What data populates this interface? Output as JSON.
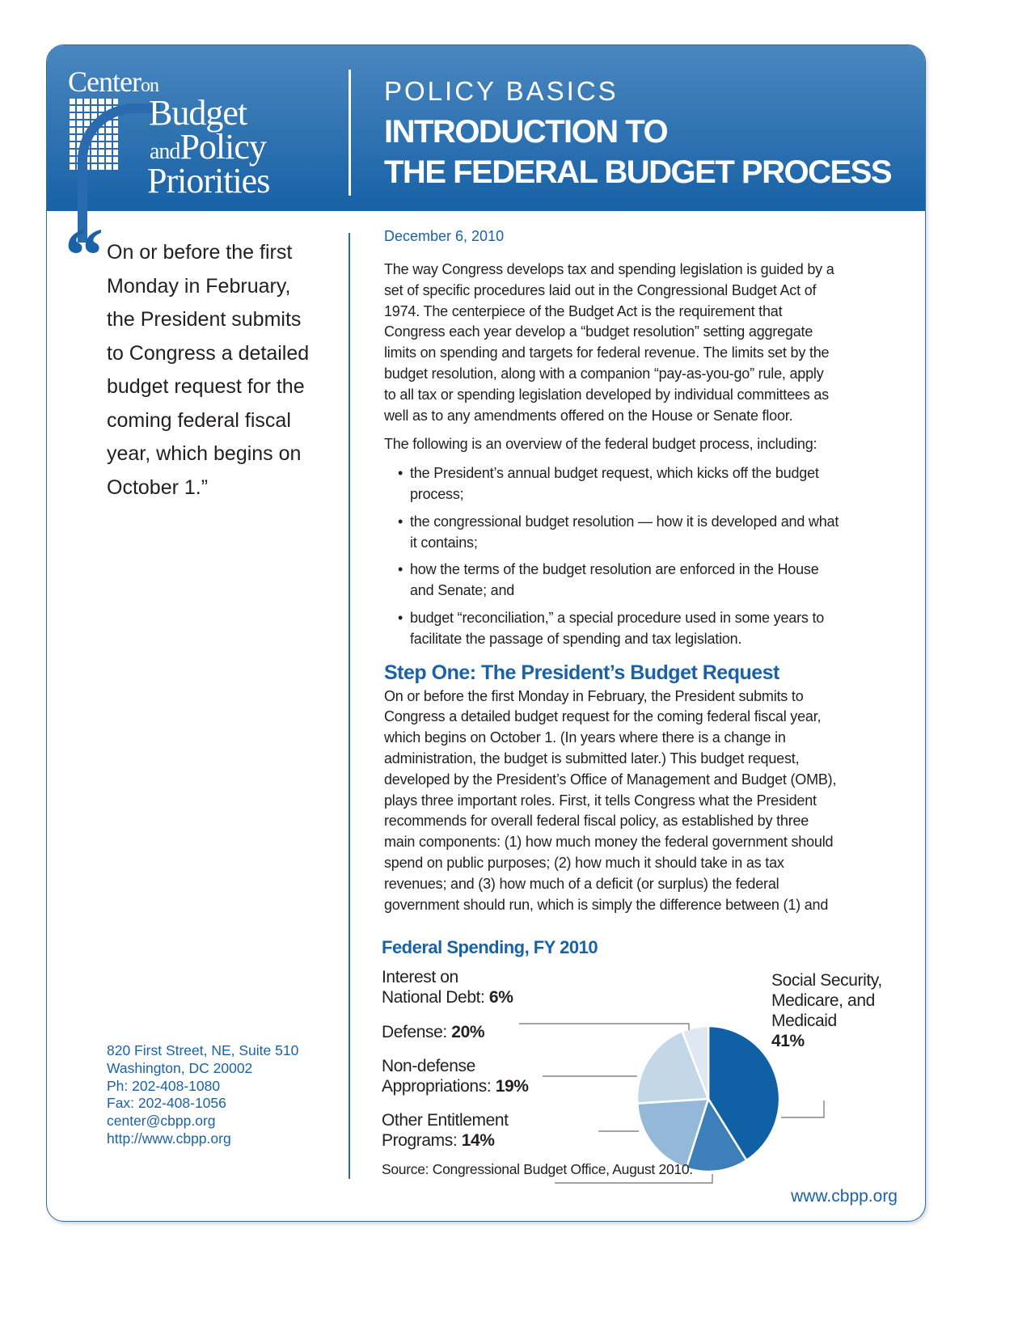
{
  "logo": {
    "line1": "Center",
    "line1_small": "on",
    "line2": "Budget",
    "line3_small": "and",
    "line3": "Policy",
    "line4": "Priorities"
  },
  "header": {
    "kicker": "POLICY BASICS",
    "title_line1": "INTRODUCTION TO",
    "title_line2": "THE FEDERAL BUDGET PROCESS"
  },
  "sidebar": {
    "quote_mark": "“",
    "quote_lines": [
      "On or before the first",
      "Monday in February,",
      "the President submits",
      "to Congress a detailed",
      "budget request for the",
      "coming federal fiscal",
      "year, which begins on",
      "October 1.”"
    ],
    "address": [
      "820 First Street, NE, Suite 510",
      "Washington, DC 20002",
      "Ph: 202-408-1080",
      "Fax: 202-408-1056",
      "center@cbpp.org",
      "http://www.cbpp.org"
    ]
  },
  "main": {
    "date": "December 6, 2010",
    "intro": [
      "The way Congress develops tax and spending legislation is guided by a",
      "set of specific procedures laid out in the Congressional Budget Act of",
      "1974.  The centerpiece of the Budget Act is the requirement that",
      "Congress each year develop a “budget resolution” setting aggregate",
      "limits on spending and targets for federal revenue.  The limits set by the",
      "budget resolution, along with a companion “pay-as-you-go” rule, apply",
      "to all tax or spending legislation developed by individual committees as",
      "well as to any amendments offered on the House or Senate floor."
    ],
    "overview": [
      "The following is an overview of the federal budget process, including:"
    ],
    "bullets": [
      [
        "the President’s annual budget request, which kicks off the budget",
        "process;"
      ],
      [
        "the congressional budget resolution — how it is developed and what",
        "it contains;"
      ],
      [
        "how the terms of the budget resolution are enforced in the House",
        "and Senate; and"
      ],
      [
        "budget “reconciliation,” a special procedure used in some years to",
        "facilitate the passage of spending and tax legislation."
      ]
    ],
    "step_heading": "Step One:  The President’s Budget Request",
    "step_text": [
      "On or before the first Monday in February, the President submits to",
      "Congress a detailed budget request for the coming federal fiscal year,",
      "which begins on October 1.  (In years where there is a change in",
      "administration, the budget is submitted later.) This budget request,",
      "developed by the President’s Office of Management and Budget (OMB),",
      "plays three important roles.  First, it tells Congress what the President",
      "recommends for overall federal fiscal policy, as established by three",
      "main components: (1) how much money the federal government should",
      "spend on public purposes; (2) how much it should take in as tax",
      "revenues; and (3) how much of a deficit (or surplus) the federal",
      "government should run, which is simply the difference between (1) and"
    ]
  },
  "chart_data": {
    "type": "pie",
    "title": "Federal Spending, FY 2010",
    "slices": [
      {
        "label_line1": "Social Security,",
        "label_line2": "Medicare, and",
        "label_line3": "Medicaid",
        "value_label": "41%",
        "value": 41,
        "color": "#1060a6"
      },
      {
        "label_line1": "Other Entitlement",
        "label_line2": "Programs: ",
        "value_label": "14%",
        "value": 14,
        "color": "#3d7fb8"
      },
      {
        "label_line1": "Non-defense",
        "label_line2": "Appropriations: ",
        "value_label": "19%",
        "value": 19,
        "color": "#94b8d7"
      },
      {
        "label_line1": "Defense: ",
        "value_label": "20%",
        "value": 20,
        "color": "#c3d7e9"
      },
      {
        "label_line1": "Interest on",
        "label_line2": "National Debt: ",
        "value_label": "6%",
        "value": 6,
        "color": "#dfe8f2"
      }
    ],
    "source": "Source:  Congressional Budget Office, August 2010."
  },
  "footer": {
    "url": "www.cbpp.org"
  },
  "colors": {
    "brand_blue": "#1a62a8",
    "header_gradient_top": "#4a87bf",
    "header_gradient_bottom": "#1861a6"
  }
}
